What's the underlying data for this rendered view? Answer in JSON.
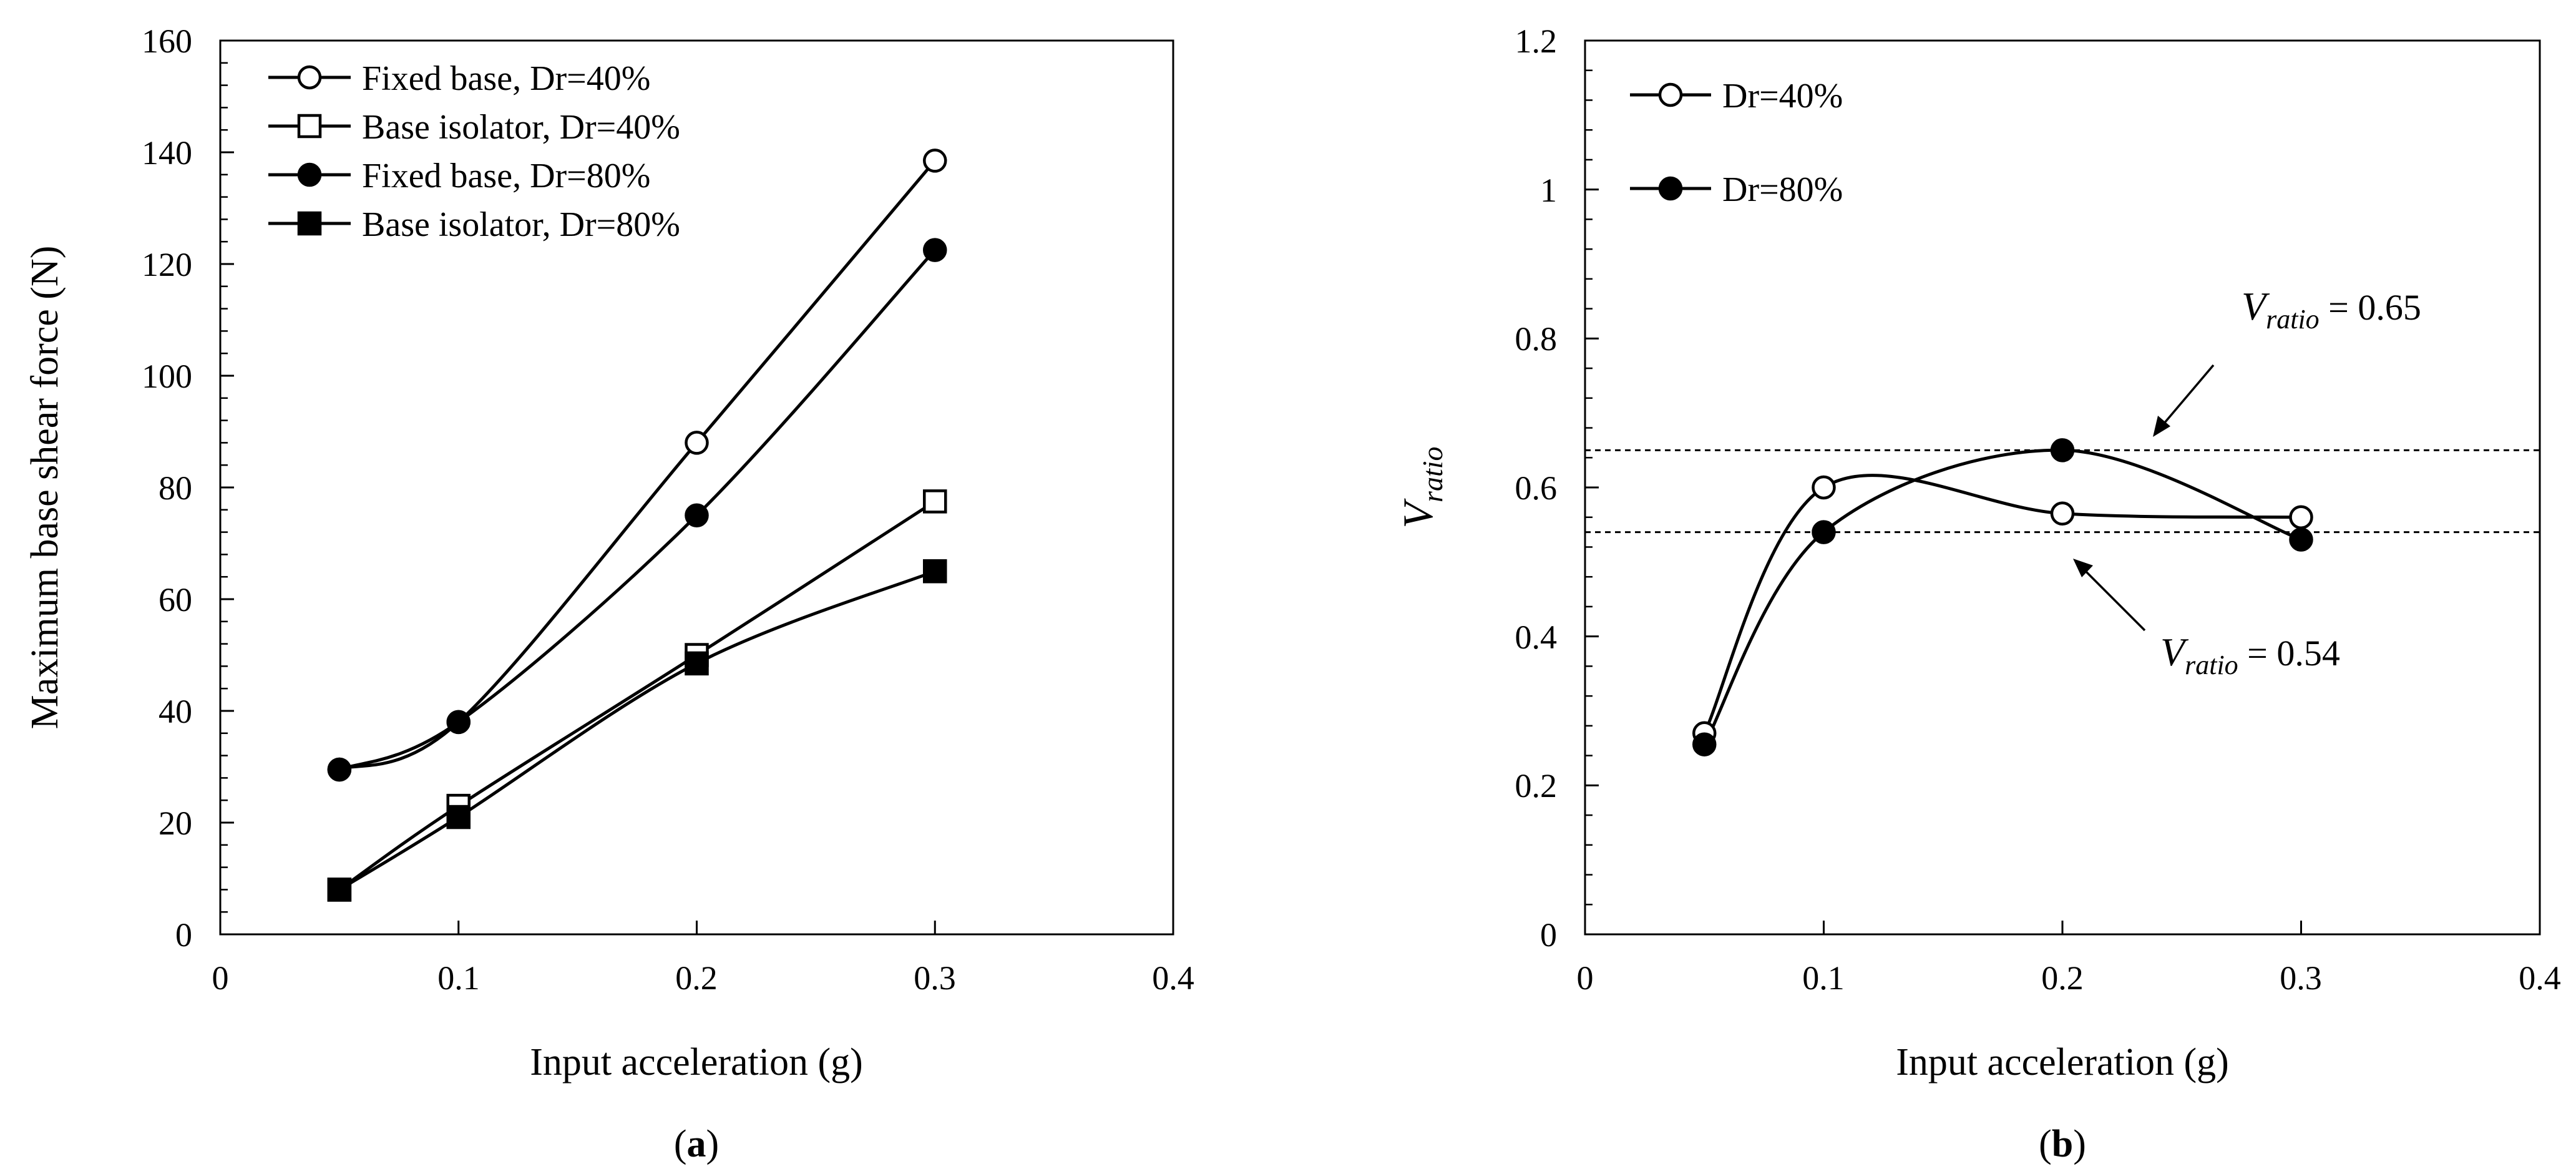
{
  "chart_data": [
    {
      "id": "a",
      "type": "line",
      "panel_label_open": "(",
      "panel_label": "a",
      "panel_label_close": ")",
      "xlabel": "Input acceleration (g)",
      "ylabel": "Maximum base shear force (N)",
      "xlim": [
        0,
        0.4
      ],
      "ylim": [
        0,
        160
      ],
      "xticks": [
        0,
        0.1,
        0.2,
        0.3,
        0.4
      ],
      "xtick_labels": [
        "0",
        "0.1",
        "0.2",
        "0.3",
        "0.4"
      ],
      "yticks": [
        0,
        20,
        40,
        60,
        80,
        100,
        120,
        140,
        160
      ],
      "ytick_labels": [
        "0",
        "20",
        "40",
        "60",
        "80",
        "100",
        "120",
        "140",
        "160"
      ],
      "legend_position": "top-left",
      "series": [
        {
          "name": "Fixed base, Dr=40%",
          "marker": "circle",
          "filled": false,
          "x": [
            0.05,
            0.1,
            0.2,
            0.3
          ],
          "values": [
            29.5,
            38,
            88,
            138.5
          ]
        },
        {
          "name": "Base isolator, Dr=40%",
          "marker": "square",
          "filled": false,
          "x": [
            0.05,
            0.1,
            0.2,
            0.3
          ],
          "values": [
            8,
            23,
            50,
            77.5
          ]
        },
        {
          "name": "Fixed base, Dr=80%",
          "marker": "circle",
          "filled": true,
          "x": [
            0.05,
            0.1,
            0.2,
            0.3
          ],
          "values": [
            29.5,
            38,
            75,
            122.5
          ]
        },
        {
          "name": "Base isolator, Dr=80%",
          "marker": "square",
          "filled": true,
          "x": [
            0.05,
            0.1,
            0.2,
            0.3
          ],
          "values": [
            8,
            21,
            48.5,
            65
          ]
        }
      ]
    },
    {
      "id": "b",
      "type": "line",
      "panel_label_open": "(",
      "panel_label": "b",
      "panel_label_close": ")",
      "xlabel": "Input acceleration (g)",
      "ylabel_main": "V",
      "ylabel_sub": "ratio",
      "xlim": [
        0,
        0.4
      ],
      "ylim": [
        0,
        1.2
      ],
      "xticks": [
        0,
        0.1,
        0.2,
        0.3,
        0.4
      ],
      "xtick_labels": [
        "0",
        "0.1",
        "0.2",
        "0.3",
        "0.4"
      ],
      "yticks": [
        0,
        0.2,
        0.4,
        0.6,
        0.8,
        1.0,
        1.2
      ],
      "ytick_labels": [
        "0",
        "0.2",
        "0.4",
        "0.6",
        "0.8",
        "1",
        "1.2"
      ],
      "legend_position": "top-left",
      "series": [
        {
          "name": "Dr=40%",
          "marker": "circle",
          "filled": false,
          "x": [
            0.05,
            0.1,
            0.2,
            0.3
          ],
          "values": [
            0.27,
            0.6,
            0.565,
            0.56
          ]
        },
        {
          "name": "Dr=80%",
          "marker": "circle",
          "filled": true,
          "x": [
            0.05,
            0.1,
            0.2,
            0.3
          ],
          "values": [
            0.255,
            0.54,
            0.65,
            0.53
          ]
        }
      ],
      "reference_lines": [
        {
          "value": 0.65,
          "label_main": "V",
          "label_sub": "ratio",
          "label_rest": " = 0.65"
        },
        {
          "value": 0.54,
          "label_main": "V",
          "label_sub": "ratio",
          "label_rest": " = 0.54"
        }
      ]
    }
  ]
}
